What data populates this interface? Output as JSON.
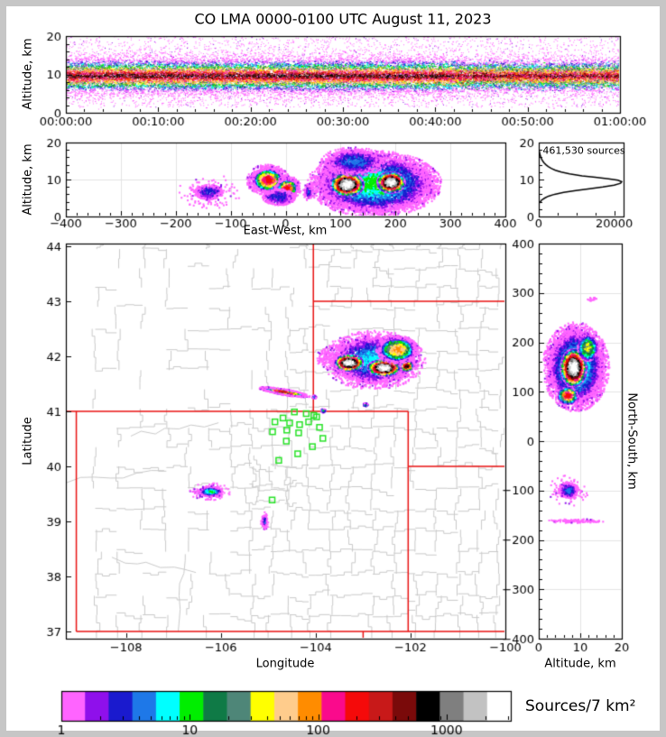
{
  "title": "CO LMA 0000-0100 UTC August 11, 2023",
  "window": {
    "frame_color": "#c6c6c6",
    "background": "#ffffff"
  },
  "palette": {
    "name": "source-density-scale",
    "colors": [
      "#ff64ff",
      "#8f10eb",
      "#1a1ace",
      "#1e78e8",
      "#00ffff",
      "#00ee00",
      "#0f7a46",
      "#4e8678",
      "#ffff00",
      "#ffcc8c",
      "#ff8c00",
      "#fa0a8c",
      "#f50a0a",
      "#c81919",
      "#7a0a0a",
      "#000000",
      "#7f7f7f",
      "#c2c2c2",
      "#ffffff"
    ]
  },
  "chart_data": [
    {
      "name": "time-height-panel",
      "type": "heatmap",
      "title": "CO LMA 0000-0100 UTC August 11, 2023",
      "ylabel": "Altitude, km",
      "x_range": [
        0,
        60
      ],
      "x_tick_values": [
        0,
        10,
        20,
        30,
        40,
        50,
        60
      ],
      "x_tick_labels": [
        "00:00:00",
        "00:10:00",
        "00:20:00",
        "00:30:00",
        "00:40:00",
        "00:50:00",
        "01:00:00"
      ],
      "x_minor_step": 2,
      "y_range": [
        0,
        20
      ],
      "y_tick_values": [
        0,
        10,
        20
      ],
      "y_tick_labels": [
        "0",
        "10",
        "20"
      ],
      "y_minor_step": 2,
      "band": {
        "center_km": 9.7,
        "sigma_km": 2.35,
        "n": 26000,
        "sprinkle_n": 3800,
        "late_fade_frac": 0.7
      },
      "summary": "Continuous lightning source band 5-14 km altitude for the full hour, dense red/black core near 8-12 km, sparse magenta sources up to 20 km, core weakening after ~00:42."
    },
    {
      "name": "east-west-cross-section",
      "type": "heatmap",
      "xlabel": "East-West, km",
      "ylabel": "Altitude, km",
      "x_range": [
        -400,
        400
      ],
      "x_tick_values": [
        -400,
        -300,
        -200,
        -100,
        0,
        100,
        200,
        300,
        400
      ],
      "x_tick_labels": [
        "−400",
        "−300",
        "−200",
        "−100",
        "0",
        "100",
        "200",
        "300",
        "400"
      ],
      "x_minor_step": 20,
      "y_range": [
        0,
        20
      ],
      "y_tick_values": [
        0,
        10,
        20
      ],
      "y_tick_labels": [
        "0",
        "10",
        "20"
      ],
      "y_minor_step": 2,
      "grid_x": [
        -300,
        -200,
        -100,
        0,
        100,
        200,
        300
      ],
      "grid_y": [
        10
      ],
      "clusters": [
        {
          "cx": -140,
          "cy": 6.6,
          "rx": 25,
          "ry": 2.0,
          "levels": 3,
          "halo": 2.4,
          "n": 380
        },
        {
          "cx": -32,
          "cy": 9.8,
          "rx": 26,
          "ry": 2.9,
          "levels": 13,
          "halo": 1.5,
          "n": 1500
        },
        {
          "cx": 3,
          "cy": 7.6,
          "rx": 18,
          "ry": 2.4,
          "levels": 13,
          "halo": 1.4,
          "n": 900
        },
        {
          "cx": -12,
          "cy": 5.2,
          "rx": 30,
          "ry": 2.2,
          "levels": 3,
          "n": 500
        },
        {
          "cx": 42,
          "cy": 6.6,
          "rx": 7,
          "ry": 1.6,
          "levels": 4,
          "halo": 1.5,
          "n": 140
        },
        {
          "cx": 162,
          "cy": 8.8,
          "rx": 98,
          "ry": 7.2,
          "levels": 6,
          "halo": 1.25,
          "n": 5200
        },
        {
          "cx": 112,
          "cy": 8.6,
          "rx": 30,
          "ry": 3.1,
          "levels": 19,
          "n": 3000
        },
        {
          "cx": 192,
          "cy": 9.2,
          "rx": 25,
          "ry": 2.8,
          "levels": 19,
          "n": 2400
        },
        {
          "cx": 125,
          "cy": 14.8,
          "rx": 48,
          "ry": 3.0,
          "levels": 4,
          "halo": 1.3,
          "n": 900
        }
      ]
    },
    {
      "name": "altitude-histogram",
      "type": "line",
      "annotation": "461,530 sources",
      "x_range": [
        0,
        22500
      ],
      "x_tick_values": [
        0,
        20000
      ],
      "x_tick_labels": [
        "0",
        "20000"
      ],
      "x_minor_step": 5000,
      "y_range": [
        0,
        20
      ],
      "y_tick_values": [
        0,
        10,
        20
      ],
      "y_tick_labels": [
        "0",
        "10",
        "20"
      ],
      "y_minor_step": 2,
      "profile_alt_count": [
        [
          3.6,
          50
        ],
        [
          4,
          500
        ],
        [
          4.4,
          700
        ],
        [
          5,
          1600
        ],
        [
          5.5,
          2600
        ],
        [
          6,
          4200
        ],
        [
          6.5,
          6600
        ],
        [
          7,
          9800
        ],
        [
          7.5,
          13500
        ],
        [
          8,
          17000
        ],
        [
          8.5,
          20000
        ],
        [
          9,
          21700
        ],
        [
          9.4,
          22000
        ],
        [
          9.8,
          21000
        ],
        [
          10.2,
          18500
        ],
        [
          10.6,
          15000
        ],
        [
          11,
          11500
        ],
        [
          11.5,
          8200
        ],
        [
          12,
          6000
        ],
        [
          12.5,
          4400
        ],
        [
          13,
          3300
        ],
        [
          13.5,
          2500
        ],
        [
          14,
          1900
        ],
        [
          14.5,
          1400
        ],
        [
          15,
          1050
        ],
        [
          15.5,
          780
        ],
        [
          16,
          560
        ],
        [
          16.5,
          400
        ],
        [
          17,
          270
        ],
        [
          17.5,
          170
        ],
        [
          18,
          100
        ],
        [
          18.5,
          55
        ],
        [
          19,
          25
        ],
        [
          19.5,
          10
        ],
        [
          20,
          0
        ]
      ]
    },
    {
      "name": "plan-view-map",
      "type": "heatmap",
      "xlabel": "Longitude",
      "ylabel": "Latitude",
      "x_range": [
        -109.27,
        -100.0
      ],
      "x_tick_values": [
        -108,
        -106,
        -104,
        -102,
        -100
      ],
      "x_tick_labels": [
        "−108",
        "−106",
        "−104",
        "−102",
        "−100"
      ],
      "y_range": [
        36.87,
        44.05
      ],
      "y_tick_values": [
        37,
        38,
        39,
        40,
        41,
        42,
        43,
        44
      ],
      "y_tick_labels": [
        "37",
        "38",
        "39",
        "40",
        "41",
        "42",
        "43",
        "44"
      ],
      "state_border_color": "#e81010",
      "county_border_color": "#c9c9c9",
      "station_color": "#28e228",
      "state_borders": [
        [
          [
            -109.27,
            41
          ],
          [
            -102.05,
            41
          ]
        ],
        [
          [
            -109.05,
            41
          ],
          [
            -109.05,
            37
          ]
        ],
        [
          [
            -109.05,
            37
          ],
          [
            -100.0,
            37
          ]
        ],
        [
          [
            -102.05,
            41
          ],
          [
            -102.05,
            37
          ]
        ],
        [
          [
            -104.05,
            41
          ],
          [
            -104.05,
            44.05
          ]
        ],
        [
          [
            -104.05,
            43
          ],
          [
            -100.0,
            43
          ]
        ],
        [
          [
            -102.05,
            40
          ],
          [
            -100.0,
            40
          ]
        ],
        [
          [
            -103.0,
            37
          ],
          [
            -103.0,
            36.87
          ]
        ]
      ],
      "stations": [
        [
          -104.45,
          40.99
        ],
        [
          -104.2,
          40.96
        ],
        [
          -104.04,
          40.93
        ],
        [
          -103.98,
          40.9
        ],
        [
          -104.15,
          40.81
        ],
        [
          -104.69,
          40.88
        ],
        [
          -104.55,
          40.79
        ],
        [
          -104.86,
          40.81
        ],
        [
          -104.34,
          40.76
        ],
        [
          -104.61,
          40.66
        ],
        [
          -104.91,
          40.63
        ],
        [
          -104.36,
          40.61
        ],
        [
          -103.92,
          40.71
        ],
        [
          -103.85,
          40.51
        ],
        [
          -104.62,
          40.46
        ],
        [
          -104.07,
          40.36
        ],
        [
          -104.38,
          40.23
        ],
        [
          -104.78,
          40.11
        ],
        [
          -104.92,
          39.39
        ]
      ],
      "clusters": [
        {
          "cx": -102.78,
          "cy": 41.93,
          "rx": 0.82,
          "ry": 0.4,
          "levels": 5,
          "halo": 1.35,
          "n": 2800
        },
        {
          "cx": -103.3,
          "cy": 41.88,
          "rx": 0.3,
          "ry": 0.15,
          "levels": 19,
          "n": 1900
        },
        {
          "cx": -102.56,
          "cy": 41.79,
          "rx": 0.34,
          "ry": 0.15,
          "levels": 19,
          "n": 2100
        },
        {
          "cx": -102.08,
          "cy": 41.82,
          "rx": 0.13,
          "ry": 0.09,
          "levels": 16,
          "n": 420
        },
        {
          "cx": -102.28,
          "cy": 42.12,
          "rx": 0.36,
          "ry": 0.21,
          "levels": 11,
          "halo": 1.25,
          "n": 1100
        },
        {
          "cx": -103.75,
          "cy": 41.97,
          "rx": 0.18,
          "ry": 0.14,
          "levels": 1,
          "halo": 1.6,
          "n": 90
        },
        {
          "cx": -104.66,
          "cy": 41.35,
          "rx": 0.42,
          "ry": 0.045,
          "levels": 14,
          "tilt": -0.14,
          "halo": 1.3,
          "n": 800
        },
        {
          "cx": -104.03,
          "cy": 41.26,
          "rx": 0.045,
          "ry": 0.03,
          "levels": 4,
          "n": 45
        },
        {
          "cx": -103.84,
          "cy": 41.01,
          "rx": 0.05,
          "ry": 0.035,
          "levels": 6,
          "n": 60
        },
        {
          "cx": -102.95,
          "cy": 41.12,
          "rx": 0.05,
          "ry": 0.03,
          "levels": 7,
          "n": 55
        },
        {
          "cx": -106.22,
          "cy": 39.54,
          "rx": 0.24,
          "ry": 0.085,
          "levels": 6,
          "halo": 1.9,
          "n": 420
        },
        {
          "cx": -105.08,
          "cy": 39.0,
          "rx": 0.05,
          "ry": 0.1,
          "levels": 4,
          "halo": 1.7,
          "n": 130
        }
      ]
    },
    {
      "name": "north-south-cross-section",
      "type": "heatmap",
      "xlabel": "Altitude, km",
      "ylabel": "North-South, km",
      "x_range": [
        0,
        20
      ],
      "x_tick_values": [
        0,
        10,
        20
      ],
      "x_tick_labels": [
        "0",
        "10",
        "20"
      ],
      "x_minor_step": 2,
      "y_range": [
        -400,
        400
      ],
      "y_tick_values": [
        400,
        300,
        200,
        100,
        0,
        -100,
        -200,
        -300,
        -400
      ],
      "y_tick_labels": [
        "400",
        "300",
        "200",
        "100",
        "0",
        "−100",
        "−200",
        "−300",
        "−400"
      ],
      "y_minor_step": 20,
      "grid_x": [
        10
      ],
      "grid_y": [
        -300,
        -200,
        -100,
        0,
        100,
        200,
        300
      ],
      "clusters": [
        {
          "cx": 9,
          "cy": 150,
          "rx": 6.2,
          "ry": 70,
          "levels": 6,
          "halo": 1.3,
          "n": 4400
        },
        {
          "cx": 8.4,
          "cy": 148,
          "rx": 3.1,
          "ry": 38,
          "levels": 19,
          "n": 2800
        },
        {
          "cx": 7,
          "cy": 92,
          "rx": 2.3,
          "ry": 17,
          "levels": 13,
          "n": 800
        },
        {
          "cx": 11.8,
          "cy": 188,
          "rx": 2.4,
          "ry": 26,
          "levels": 9,
          "n": 600
        },
        {
          "cx": 7.2,
          "cy": -100,
          "rx": 2.2,
          "ry": 15,
          "levels": 4,
          "halo": 2.2,
          "n": 330
        },
        {
          "cx": 9,
          "cy": -162,
          "rx": 5.5,
          "ry": 3,
          "levels": 1,
          "halo": 1.4,
          "n": 90
        },
        {
          "cx": 13,
          "cy": 287,
          "rx": 1.2,
          "ry": 4,
          "levels": 1,
          "n": 18
        }
      ]
    },
    {
      "name": "colorbar",
      "type": "heatmap",
      "role": "color-scale",
      "label": "Sources/7 km²",
      "scale": "log",
      "log_decades": 3.5,
      "tick_values": [
        1,
        10,
        100,
        1000
      ],
      "tick_labels": [
        "1",
        "10",
        "100",
        "1000"
      ],
      "n_segments": 19
    }
  ]
}
